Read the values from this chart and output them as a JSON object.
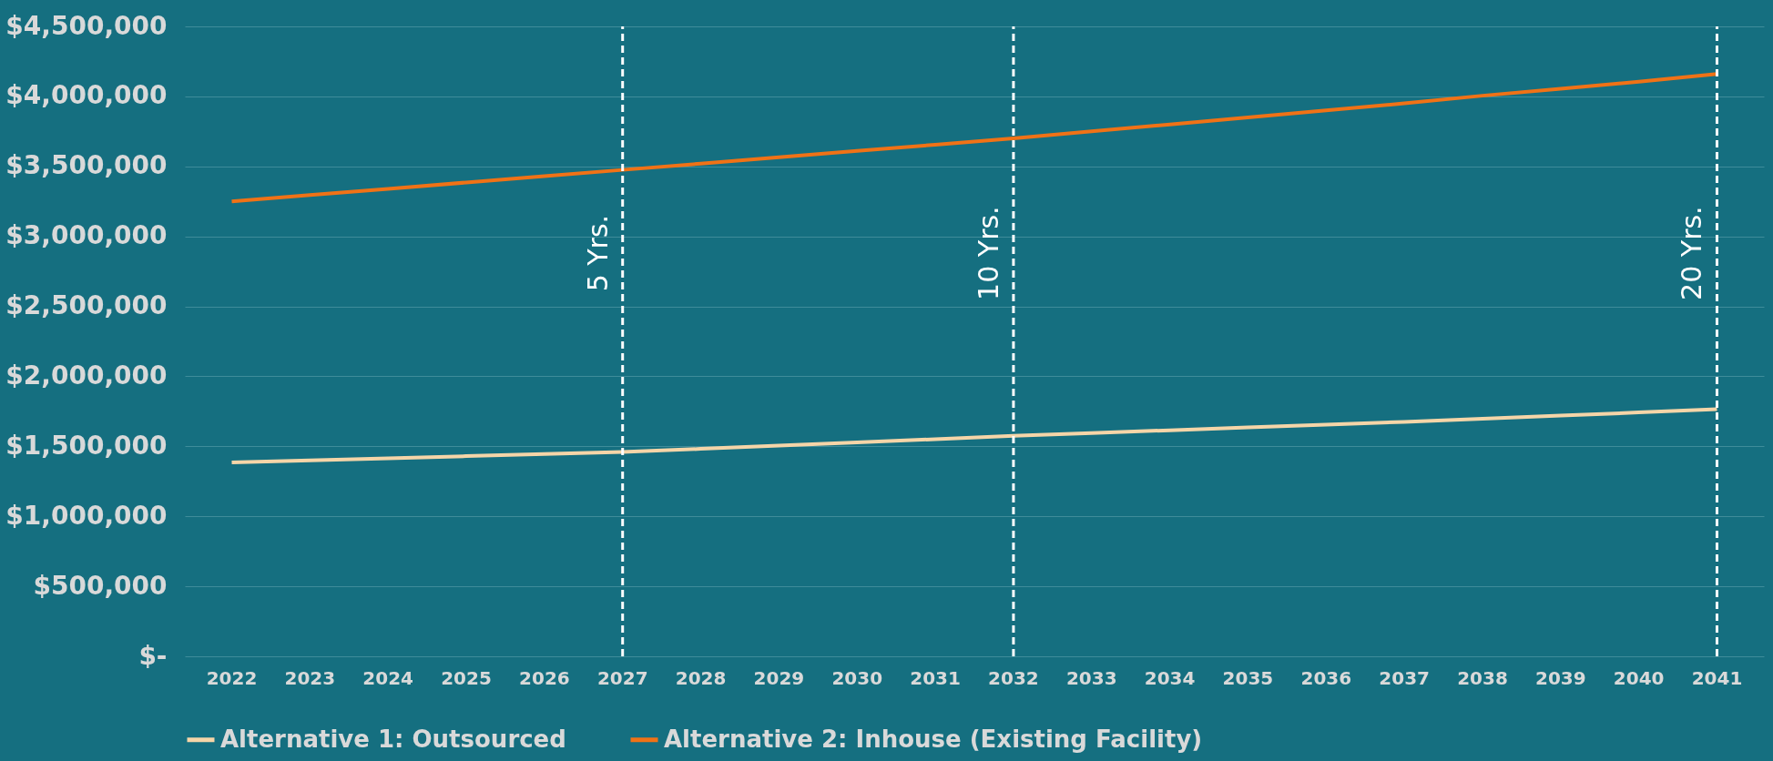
{
  "chart_data": {
    "type": "line",
    "categories": [
      "2022",
      "2023",
      "2024",
      "2025",
      "2026",
      "2027",
      "2028",
      "2029",
      "2030",
      "2031",
      "2032",
      "2033",
      "2034",
      "2035",
      "2036",
      "2037",
      "2038",
      "2039",
      "2040",
      "2041"
    ],
    "series": [
      {
        "name": "Alternative 1: Outsourced",
        "color": "#f5d5a8",
        "values": [
          1385000,
          1400000,
          1415000,
          1430000,
          1445000,
          1460000,
          1482000,
          1505000,
          1528000,
          1551000,
          1575000,
          1595000,
          1615000,
          1635000,
          1655000,
          1675000,
          1697000,
          1720000,
          1742000,
          1765000
        ]
      },
      {
        "name": "Alternative 2: Inhouse (Existing Facility)",
        "color": "#f07216",
        "values": [
          3250000,
          3295000,
          3340000,
          3385000,
          3430000,
          3475000,
          3520000,
          3565000,
          3610000,
          3655000,
          3700000,
          3750000,
          3800000,
          3850000,
          3900000,
          3950000,
          4005000,
          4055000,
          4105000,
          4160000
        ]
      }
    ],
    "ylim": [
      0,
      4500000
    ],
    "yticks": [
      {
        "value": 0,
        "label": "$-"
      },
      {
        "value": 500000,
        "label": "$500,000"
      },
      {
        "value": 1000000,
        "label": "$1,000,000"
      },
      {
        "value": 1500000,
        "label": "$1,500,000"
      },
      {
        "value": 2000000,
        "label": "$2,000,000"
      },
      {
        "value": 2500000,
        "label": "$2,500,000"
      },
      {
        "value": 3000000,
        "label": "$3,000,000"
      },
      {
        "value": 3500000,
        "label": "$3,500,000"
      },
      {
        "value": 4000000,
        "label": "$4,000,000"
      },
      {
        "value": 4500000,
        "label": "$4,500,000"
      }
    ],
    "ref_lines": [
      {
        "axis": "x",
        "value": "2027",
        "label": "5 Yrs.",
        "color": "#ffffff",
        "line_style": "dashed"
      },
      {
        "axis": "x",
        "value": "2032",
        "label": "10 Yrs.",
        "color": "#ffffff",
        "line_style": "dashed"
      },
      {
        "axis": "x",
        "value": "2041",
        "label": "20 Yrs.",
        "color": "#ffffff",
        "line_style": "dashed"
      }
    ],
    "grid": "y",
    "legend": "bottom",
    "marker": "none",
    "line_style": "solid"
  }
}
